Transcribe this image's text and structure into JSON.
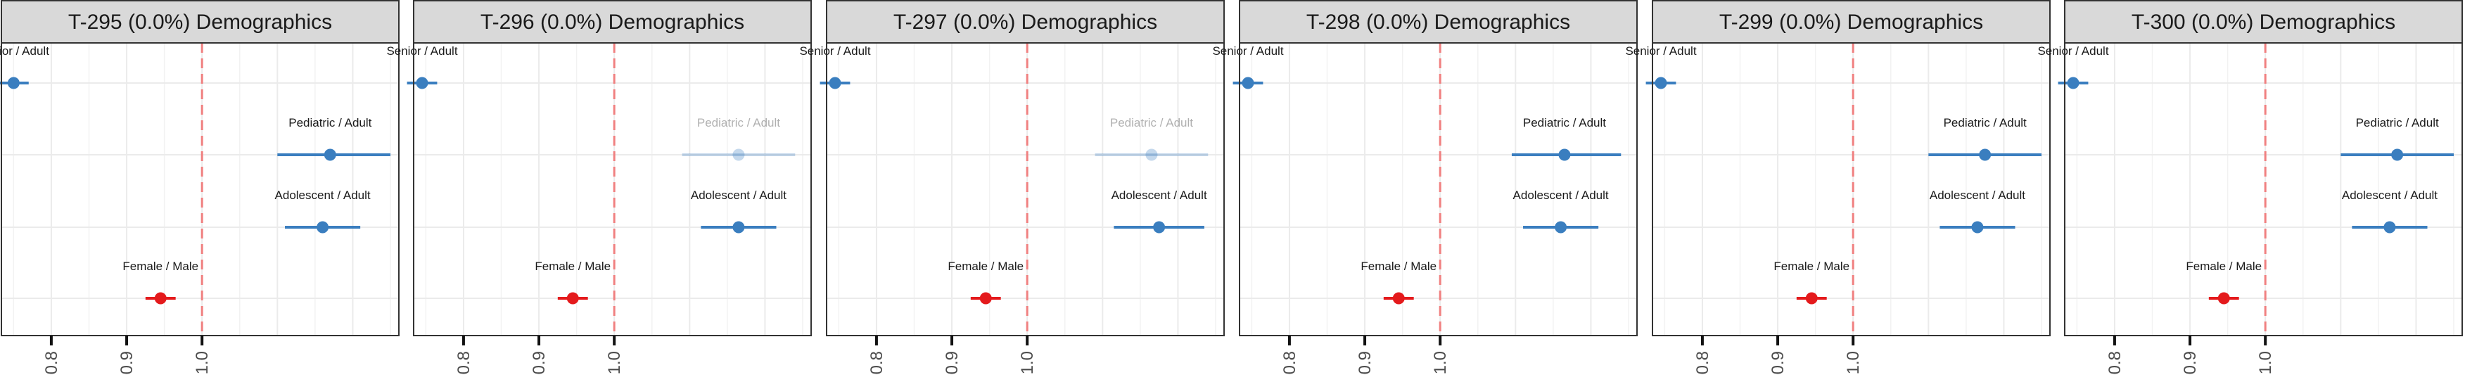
{
  "chart_data": [
    {
      "type": "forest",
      "title": "T-295 (0.0%) Demographics",
      "rows": [
        {
          "label": "Senior / Adult",
          "estimate": 0.75,
          "lo": 0.73,
          "hi": 0.77,
          "color": "#3a7ebf",
          "faded": false
        },
        {
          "label": "Pediatric / Adult",
          "estimate": 1.17,
          "lo": 1.1,
          "hi": 1.25,
          "color": "#3a7ebf",
          "faded": false
        },
        {
          "label": "Adolescent / Adult",
          "estimate": 1.16,
          "lo": 1.11,
          "hi": 1.21,
          "color": "#3a7ebf",
          "faded": false
        },
        {
          "label": "Female / Male",
          "estimate": 0.945,
          "lo": 0.925,
          "hi": 0.965,
          "color": "#e41a1c",
          "faded": false
        }
      ],
      "x_ticks": [
        "0.8",
        "0.9",
        "1.0"
      ],
      "reference": 1.0
    },
    {
      "type": "forest",
      "title": "T-296 (0.0%) Demographics",
      "rows": [
        {
          "label": "Senior / Adult",
          "estimate": 0.745,
          "lo": 0.725,
          "hi": 0.765,
          "color": "#3a7ebf",
          "faded": false
        },
        {
          "label": "Pediatric / Adult",
          "estimate": 1.165,
          "lo": 1.09,
          "hi": 1.24,
          "color": "#3a7ebf",
          "faded": true
        },
        {
          "label": "Adolescent / Adult",
          "estimate": 1.165,
          "lo": 1.115,
          "hi": 1.215,
          "color": "#3a7ebf",
          "faded": false
        },
        {
          "label": "Female / Male",
          "estimate": 0.945,
          "lo": 0.925,
          "hi": 0.965,
          "color": "#e41a1c",
          "faded": false
        }
      ],
      "x_ticks": [
        "0.8",
        "0.9",
        "1.0"
      ],
      "reference": 1.0
    },
    {
      "type": "forest",
      "title": "T-297 (0.0%) Demographics",
      "rows": [
        {
          "label": "Senior / Adult",
          "estimate": 0.745,
          "lo": 0.725,
          "hi": 0.765,
          "color": "#3a7ebf",
          "faded": false
        },
        {
          "label": "Pediatric / Adult",
          "estimate": 1.165,
          "lo": 1.09,
          "hi": 1.24,
          "color": "#3a7ebf",
          "faded": true
        },
        {
          "label": "Adolescent / Adult",
          "estimate": 1.175,
          "lo": 1.115,
          "hi": 1.235,
          "color": "#3a7ebf",
          "faded": false
        },
        {
          "label": "Female / Male",
          "estimate": 0.945,
          "lo": 0.925,
          "hi": 0.965,
          "color": "#e41a1c",
          "faded": false
        }
      ],
      "x_ticks": [
        "0.8",
        "0.9",
        "1.0"
      ],
      "reference": 1.0
    },
    {
      "type": "forest",
      "title": "T-298 (0.0%) Demographics",
      "rows": [
        {
          "label": "Senior / Adult",
          "estimate": 0.745,
          "lo": 0.725,
          "hi": 0.765,
          "color": "#3a7ebf",
          "faded": false
        },
        {
          "label": "Pediatric / Adult",
          "estimate": 1.165,
          "lo": 1.095,
          "hi": 1.24,
          "color": "#3a7ebf",
          "faded": false
        },
        {
          "label": "Adolescent / Adult",
          "estimate": 1.16,
          "lo": 1.11,
          "hi": 1.21,
          "color": "#3a7ebf",
          "faded": false
        },
        {
          "label": "Female / Male",
          "estimate": 0.945,
          "lo": 0.925,
          "hi": 0.965,
          "color": "#e41a1c",
          "faded": false
        }
      ],
      "x_ticks": [
        "0.8",
        "0.9",
        "1.0"
      ],
      "reference": 1.0
    },
    {
      "type": "forest",
      "title": "T-299 (0.0%) Demographics",
      "rows": [
        {
          "label": "Senior / Adult",
          "estimate": 0.745,
          "lo": 0.725,
          "hi": 0.765,
          "color": "#3a7ebf",
          "faded": false
        },
        {
          "label": "Pediatric / Adult",
          "estimate": 1.175,
          "lo": 1.1,
          "hi": 1.25,
          "color": "#3a7ebf",
          "faded": false
        },
        {
          "label": "Adolescent / Adult",
          "estimate": 1.165,
          "lo": 1.115,
          "hi": 1.215,
          "color": "#3a7ebf",
          "faded": false
        },
        {
          "label": "Female / Male",
          "estimate": 0.945,
          "lo": 0.925,
          "hi": 0.965,
          "color": "#e41a1c",
          "faded": false
        }
      ],
      "x_ticks": [
        "0.8",
        "0.9",
        "1.0"
      ],
      "reference": 1.0
    },
    {
      "type": "forest",
      "title": "T-300 (0.0%) Demographics",
      "rows": [
        {
          "label": "Senior / Adult",
          "estimate": 0.745,
          "lo": 0.725,
          "hi": 0.765,
          "color": "#3a7ebf",
          "faded": false
        },
        {
          "label": "Pediatric / Adult",
          "estimate": 1.175,
          "lo": 1.1,
          "hi": 1.25,
          "color": "#3a7ebf",
          "faded": false
        },
        {
          "label": "Adolescent / Adult",
          "estimate": 1.165,
          "lo": 1.115,
          "hi": 1.215,
          "color": "#3a7ebf",
          "faded": false
        },
        {
          "label": "Female / Male",
          "estimate": 0.945,
          "lo": 0.925,
          "hi": 0.965,
          "color": "#e41a1c",
          "faded": false
        }
      ],
      "x_ticks": [
        "0.8",
        "0.9",
        "1.0"
      ],
      "reference": 1.0
    }
  ]
}
